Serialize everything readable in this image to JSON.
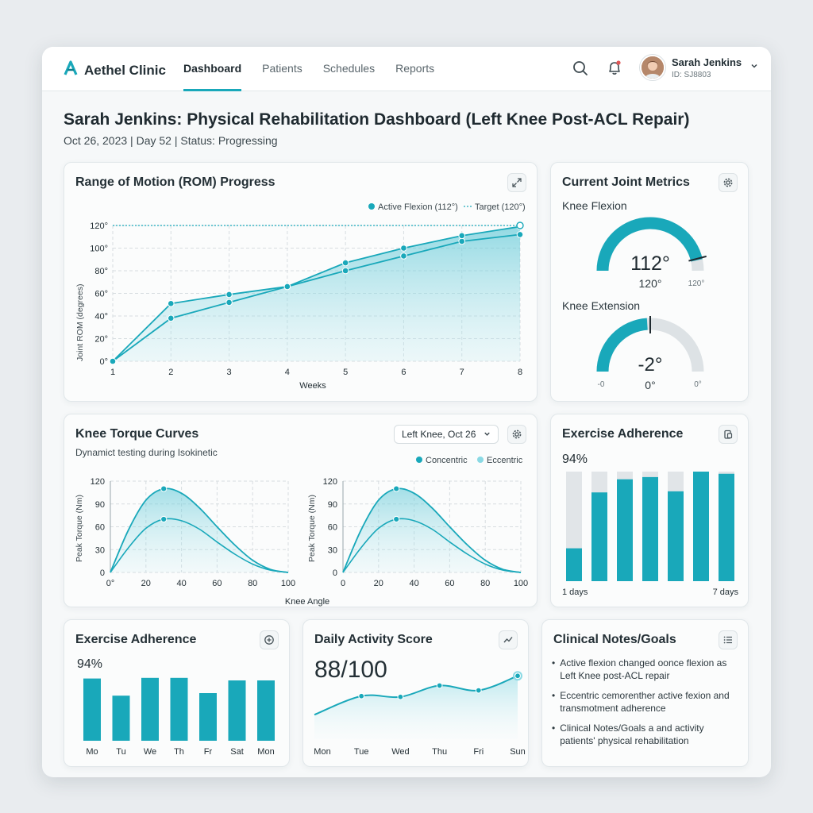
{
  "app": {
    "name": "Aethel Clinic"
  },
  "nav": {
    "items": [
      {
        "label": "Dashboard",
        "active": true
      },
      {
        "label": "Patients"
      },
      {
        "label": "Schedules"
      },
      {
        "label": "Reports"
      }
    ]
  },
  "user": {
    "name": "Sarah Jenkins",
    "id": "ID: SJ8803"
  },
  "icons": {
    "brand": "logo-a-icon",
    "search": "search-icon",
    "bell": "bell-icon",
    "chevron": "chevron-down-icon",
    "expand": "expand-icon",
    "settings": "gear-icon",
    "clipboard": "clipboard-icon",
    "plus": "plus-circle-icon",
    "trend": "trend-icon",
    "list": "list-icon"
  },
  "colors": {
    "accent": "#19a8ba",
    "light_accent": "#8ad9e4",
    "notification": "#e05555"
  },
  "page": {
    "title": "Sarah Jenkins: Physical Rehabilitation Dashboard (Left Knee Post-ACL Repair)",
    "subtitle": "Oct 26, 2023 | Day 52 | Status: Progressing"
  },
  "rom": {
    "title": "Range of Motion (ROM) Progress",
    "legend_active": "Active Flexion (112°)",
    "legend_target": "Target (120°)",
    "xlabel": "Weeks",
    "ylabel": "Joint ROM (degrees)",
    "yticks": [
      "0°",
      "20°",
      "40°",
      "60°",
      "80°",
      "100°",
      "120°"
    ],
    "xticks": [
      "1",
      "2",
      "3",
      "4",
      "5",
      "6",
      "7",
      "8"
    ]
  },
  "joint": {
    "title": "Current Joint Metrics",
    "flexion_label": "Knee Flexion",
    "flexion_value": "112°",
    "flexion_target": "120°",
    "flexion_max": "120°",
    "flexion_fraction": 0.93,
    "extension_label": "Knee Extension",
    "extension_value": "-2°",
    "extension_target": "0°",
    "extension_left": "-0",
    "extension_right": "0°",
    "extension_fraction": 0.48
  },
  "torque": {
    "title": "Knee Torque Curves",
    "subtitle": "Dynamict testing during Isokinetic",
    "dropdown": "Left Knee, Oct 26",
    "legend_concentric": "Concentric",
    "legend_eccentric": "Eccentric",
    "ylabel": "Peak Torque (Nm)",
    "xlabel": "Knee Angle",
    "yticks": [
      "0",
      "30",
      "60",
      "90",
      "120"
    ],
    "xticks_left": [
      "0°",
      "20",
      "40",
      "60",
      "80",
      "100"
    ],
    "xticks_right": [
      "0",
      "20",
      "40",
      "60",
      "80",
      "100"
    ]
  },
  "adherence_right": {
    "title": "Exercise Adherence",
    "percent": "94%",
    "start_label": "1 days",
    "end_label": "7 days"
  },
  "adherence_bottom": {
    "title": "Exercise Adherence",
    "percent": "94%",
    "days": [
      "Mo",
      "Tu",
      "We",
      "Th",
      "Fr",
      "Sat",
      "Mon"
    ]
  },
  "activity": {
    "title": "Daily Activity Score",
    "score": "88/100",
    "days": [
      "Mon",
      "Tue",
      "Wed",
      "Thu",
      "Fri",
      "Sun"
    ]
  },
  "notes": {
    "title": "Clinical Notes/Goals",
    "items": [
      "Active flexion changed oonce flexion as Left Knee post-ACL repair",
      "Eccentric cemorenther active fexion and transmotment adherence",
      "Clinical Notes/Goals a and activity patients' physical rehabilitation"
    ]
  },
  "chart_data": [
    {
      "type": "line",
      "title": "Range of Motion (ROM) Progress",
      "xlabel": "Weeks",
      "ylabel": "Joint ROM (degrees)",
      "x": [
        1,
        2,
        3,
        4,
        5,
        6,
        7,
        8
      ],
      "xlim": [
        1,
        8
      ],
      "ylim": [
        0,
        120
      ],
      "series": [
        {
          "name": "Active Flexion (112°)",
          "values": [
            0,
            38,
            52,
            66,
            80,
            93,
            106,
            112
          ]
        },
        {
          "name": "",
          "values": [
            0,
            51,
            59,
            66,
            87,
            100,
            111,
            119
          ]
        },
        {
          "name": "Target (120°)",
          "values": [
            120,
            120,
            120,
            120,
            120,
            120,
            120,
            120
          ]
        }
      ],
      "grid": true,
      "legend": "top-right"
    },
    {
      "type": "line",
      "title": "Knee Torque Curves",
      "xlabel": "Knee Angle",
      "ylabel": "Peak Torque (Nm)",
      "xlim": [
        0,
        100
      ],
      "ylim": [
        0,
        120
      ],
      "x": [
        0,
        10,
        20,
        30,
        40,
        50,
        60,
        70,
        80,
        90,
        100
      ],
      "series": [
        {
          "name": "Concentric",
          "values": [
            0,
            55,
            95,
            110,
            104,
            85,
            60,
            36,
            16,
            4,
            0
          ]
        },
        {
          "name": "Eccentric",
          "values": [
            0,
            32,
            58,
            70,
            68,
            57,
            40,
            24,
            11,
            3,
            0
          ]
        }
      ],
      "grid": true,
      "legend": "top-right"
    },
    {
      "type": "bar",
      "title": "Exercise Adherence",
      "categories": [
        "1",
        "2",
        "3",
        "4",
        "5",
        "6",
        "7"
      ],
      "values": [
        30,
        81,
        93,
        95,
        82,
        100,
        98
      ],
      "ylim": [
        0,
        100
      ]
    },
    {
      "type": "bar",
      "title": "Exercise Adherence",
      "categories": [
        "Mo",
        "Tu",
        "We",
        "Th",
        "Fr",
        "Sat",
        "Mon"
      ],
      "values": [
        98,
        71,
        99,
        99,
        75,
        95,
        95
      ],
      "ylim": [
        0,
        100
      ]
    },
    {
      "type": "line",
      "title": "Daily Activity Score",
      "categories": [
        "Mon",
        "Tue",
        "Wed",
        "Thu",
        "Fri",
        "Sun"
      ],
      "values": [
        40,
        63,
        62,
        76,
        70,
        88
      ],
      "ylim": [
        0,
        100
      ]
    }
  ]
}
